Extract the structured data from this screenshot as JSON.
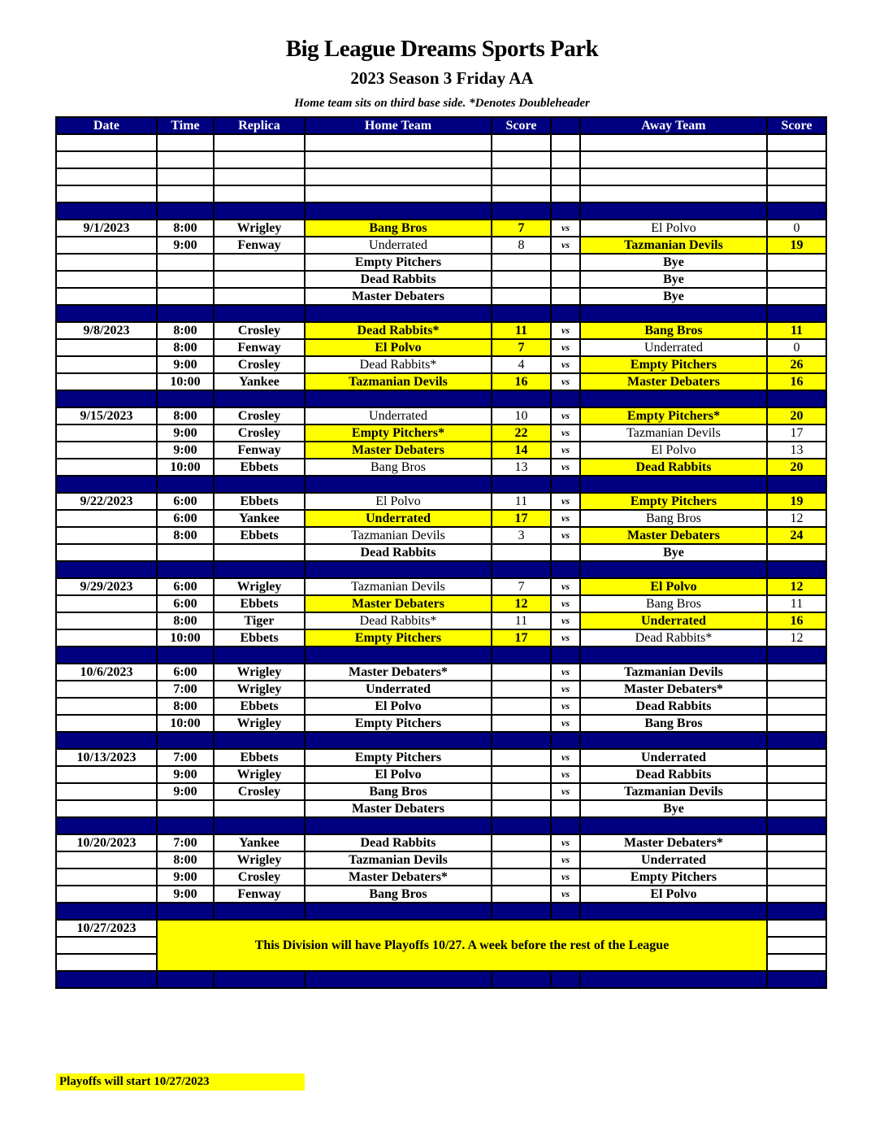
{
  "title": "Big League Dreams Sports Park",
  "subtitle": "2023 Season 3 Friday AA",
  "note": "Home team sits on third base side.  *Denotes Doubleheader",
  "columns": [
    "Date",
    "Time",
    "Replica",
    "Home Team",
    "Score",
    "",
    "Away Team",
    "Score"
  ],
  "vs_label": "vs",
  "blank_rows": 4,
  "colors": {
    "header_bg": "#000080",
    "highlight": "#ffff00"
  },
  "weeks": [
    {
      "date": "9/1/2023",
      "games": [
        {
          "time": "8:00",
          "field": "Wrigley",
          "home": "Bang Bros",
          "home_score": "7",
          "away": "El Polvo",
          "away_score": "0",
          "winner": "home"
        },
        {
          "time": "9:00",
          "field": "Fenway",
          "home": "Underrated",
          "home_score": "8",
          "away": "Tazmanian Devils",
          "away_score": "19",
          "winner": "away"
        },
        {
          "time": "",
          "field": "",
          "home": "Empty Pitchers",
          "home_score": "",
          "away": "Bye",
          "away_score": "",
          "bye": true
        },
        {
          "time": "",
          "field": "",
          "home": "Dead Rabbits",
          "home_score": "",
          "away": "Bye",
          "away_score": "",
          "bye": true
        },
        {
          "time": "",
          "field": "",
          "home": "Master Debaters",
          "home_score": "",
          "away": "Bye",
          "away_score": "",
          "bye": true
        }
      ]
    },
    {
      "date": "9/8/2023",
      "games": [
        {
          "time": "8:00",
          "field": "Crosley",
          "home": "Dead Rabbits*",
          "home_score": "11",
          "away": "Bang Bros",
          "away_score": "11",
          "winner": "both"
        },
        {
          "time": "8:00",
          "field": "Fenway",
          "home": "El Polvo",
          "home_score": "7",
          "away": "Underrated",
          "away_score": "0",
          "winner": "home"
        },
        {
          "time": "9:00",
          "field": "Crosley",
          "home": "Dead Rabbits*",
          "home_score": "4",
          "away": "Empty Pitchers",
          "away_score": "26",
          "winner": "away"
        },
        {
          "time": "10:00",
          "field": "Yankee",
          "home": "Tazmanian Devils",
          "home_score": "16",
          "away": "Master Debaters",
          "away_score": "16",
          "winner": "both"
        }
      ]
    },
    {
      "date": "9/15/2023",
      "games": [
        {
          "time": "8:00",
          "field": "Crosley",
          "home": "Underrated",
          "home_score": "10",
          "away": "Empty Pitchers*",
          "away_score": "20",
          "winner": "away"
        },
        {
          "time": "9:00",
          "field": "Crosley",
          "home": "Empty Pitchers*",
          "home_score": "22",
          "away": "Tazmanian Devils",
          "away_score": "17",
          "winner": "home"
        },
        {
          "time": "9:00",
          "field": "Fenway",
          "home": "Master Debaters",
          "home_score": "14",
          "away": "El Polvo",
          "away_score": "13",
          "winner": "home"
        },
        {
          "time": "10:00",
          "field": "Ebbets",
          "home": "Bang Bros",
          "home_score": "13",
          "away": "Dead Rabbits",
          "away_score": "20",
          "winner": "away"
        }
      ]
    },
    {
      "date": "9/22/2023",
      "games": [
        {
          "time": "6:00",
          "field": "Ebbets",
          "home": "El Polvo",
          "home_score": "11",
          "away": "Empty Pitchers",
          "away_score": "19",
          "winner": "away"
        },
        {
          "time": "6:00",
          "field": "Yankee",
          "home": "Underrated",
          "home_score": "17",
          "away": "Bang Bros",
          "away_score": "12",
          "winner": "home"
        },
        {
          "time": "8:00",
          "field": "Ebbets",
          "home": "Tazmanian Devils",
          "home_score": "3",
          "away": "Master Debaters",
          "away_score": "24",
          "winner": "away"
        },
        {
          "time": "",
          "field": "",
          "home": "Dead Rabbits",
          "home_score": "",
          "away": "Bye",
          "away_score": "",
          "bye": true
        }
      ]
    },
    {
      "date": "9/29/2023",
      "games": [
        {
          "time": "6:00",
          "field": "Wrigley",
          "home": "Tazmanian Devils",
          "home_score": "7",
          "away": "El Polvo",
          "away_score": "12",
          "winner": "away"
        },
        {
          "time": "6:00",
          "field": "Ebbets",
          "home": "Master Debaters",
          "home_score": "12",
          "away": "Bang Bros",
          "away_score": "11",
          "winner": "home"
        },
        {
          "time": "8:00",
          "field": "Tiger",
          "home": "Dead Rabbits*",
          "home_score": "11",
          "away": "Underrated",
          "away_score": "16",
          "winner": "away"
        },
        {
          "time": "10:00",
          "field": "Ebbets",
          "home": "Empty Pitchers",
          "home_score": "17",
          "away": "Dead Rabbits*",
          "away_score": "12",
          "winner": "home"
        }
      ]
    },
    {
      "date": "10/6/2023",
      "games": [
        {
          "time": "6:00",
          "field": "Wrigley",
          "home": "Master Debaters*",
          "home_score": "",
          "away": "Tazmanian Devils",
          "away_score": ""
        },
        {
          "time": "7:00",
          "field": "Wrigley",
          "home": "Underrated",
          "home_score": "",
          "away": "Master Debaters*",
          "away_score": ""
        },
        {
          "time": "8:00",
          "field": "Ebbets",
          "home": "El Polvo",
          "home_score": "",
          "away": "Dead Rabbits",
          "away_score": ""
        },
        {
          "time": "10:00",
          "field": "Wrigley",
          "home": "Empty Pitchers",
          "home_score": "",
          "away": "Bang Bros",
          "away_score": ""
        }
      ]
    },
    {
      "date": "10/13/2023",
      "games": [
        {
          "time": "7:00",
          "field": "Ebbets",
          "home": "Empty Pitchers",
          "home_score": "",
          "away": "Underrated",
          "away_score": ""
        },
        {
          "time": "9:00",
          "field": "Wrigley",
          "home": "El Polvo",
          "home_score": "",
          "away": "Dead Rabbits",
          "away_score": ""
        },
        {
          "time": "9:00",
          "field": "Crosley",
          "home": "Bang Bros",
          "home_score": "",
          "away": "Tazmanian Devils",
          "away_score": ""
        },
        {
          "time": "",
          "field": "",
          "home": "Master Debaters",
          "home_score": "",
          "away": "Bye",
          "away_score": "",
          "bye": true
        }
      ]
    },
    {
      "date": "10/20/2023",
      "games": [
        {
          "time": "7:00",
          "field": "Yankee",
          "home": "Dead Rabbits",
          "home_score": "",
          "away": "Master Debaters*",
          "away_score": ""
        },
        {
          "time": "8:00",
          "field": "Wrigley",
          "home": "Tazmanian Devils",
          "home_score": "",
          "away": "Underrated",
          "away_score": ""
        },
        {
          "time": "9:00",
          "field": "Crosley",
          "home": "Master Debaters*",
          "home_score": "",
          "away": "Empty Pitchers",
          "away_score": ""
        },
        {
          "time": "9:00",
          "field": "Fenway",
          "home": "Bang Bros",
          "home_score": "",
          "away": "El Polvo",
          "away_score": ""
        }
      ]
    }
  ],
  "playoffs": {
    "date": "10/27/2023",
    "message": "This Division will have Playoffs 10/27. A week before the rest of the League"
  },
  "footer": "Playoffs will start 10/27/2023"
}
